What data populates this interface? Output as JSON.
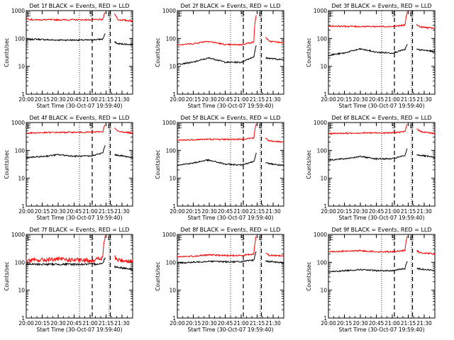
{
  "figure": {
    "xtitle_suffix": "Start Time (30-Oct-07 19:59:40)",
    "ylabel": "Counts/sec"
  },
  "chart_data": [
    {
      "type": "line",
      "title": "Det 1f BLACK = Events, RED = LLD",
      "xlabel": "Start Time (30-Oct-07 19:59:40)",
      "ylabel": "Counts/sec",
      "yscale": "log",
      "ylim": [
        1,
        1000
      ],
      "xticks": [
        "20:00",
        "20:15",
        "20:30",
        "20:45",
        "21:00",
        "21:15",
        "21:30"
      ],
      "yticks": [
        "1",
        "10",
        "100",
        "1000"
      ],
      "markers": [
        {
          "label": "E",
          "time": "20:00"
        },
        {
          "label": "S",
          "time": "21:02"
        },
        {
          "label": "E",
          "time": "21:19"
        }
      ],
      "series": [
        {
          "name": "Events",
          "color": "#000000",
          "anchors": [
            [
              0,
              88
            ],
            [
              0.08,
              95
            ],
            [
              0.25,
              88
            ],
            [
              0.6,
              88
            ],
            [
              0.72,
              95
            ],
            [
              0.742,
              150
            ]
          ],
          "post": [
            [
              0.83,
              75
            ],
            [
              0.86,
              65
            ],
            [
              1,
              60
            ]
          ]
        },
        {
          "name": "LLD",
          "color": "#ff0000",
          "anchors": [
            [
              0,
              520
            ],
            [
              0.06,
              470
            ],
            [
              0.25,
              470
            ],
            [
              0.6,
              470
            ],
            [
              0.72,
              480
            ],
            [
              0.742,
              900
            ]
          ],
          "post": [
            [
              0.83,
              780
            ],
            [
              0.86,
              470
            ],
            [
              1,
              430
            ]
          ]
        }
      ]
    },
    {
      "type": "line",
      "title": "Det 2f BLACK = Events, RED = LLD",
      "xlabel": "Start Time (30-Oct-07 19:59:40)",
      "ylabel": "Counts/sec",
      "yscale": "log",
      "ylim": [
        1,
        1000
      ],
      "xticks": [
        "20:00",
        "20:15",
        "20:30",
        "20:45",
        "21:00",
        "21:15",
        "21:30"
      ],
      "yticks": [
        "1",
        "10",
        "100",
        "1000"
      ],
      "markers": [
        {
          "label": "E",
          "time": "20:00"
        },
        {
          "label": "S",
          "time": "21:02"
        },
        {
          "label": "E",
          "time": "21:19"
        }
      ],
      "series": [
        {
          "name": "Events",
          "color": "#000000",
          "anchors": [
            [
              0,
              12
            ],
            [
              0.15,
              14
            ],
            [
              0.3,
              20
            ],
            [
              0.45,
              14
            ],
            [
              0.6,
              14
            ],
            [
              0.72,
              22
            ],
            [
              0.742,
              55
            ]
          ],
          "post": [
            [
              0.83,
              20
            ],
            [
              1,
              17
            ]
          ]
        },
        {
          "name": "LLD",
          "color": "#ff0000",
          "anchors": [
            [
              0,
              60
            ],
            [
              0.15,
              65
            ],
            [
              0.28,
              80
            ],
            [
              0.45,
              60
            ],
            [
              0.6,
              60
            ],
            [
              0.72,
              75
            ],
            [
              0.742,
              700
            ]
          ],
          "post": [
            [
              0.83,
              110
            ],
            [
              0.86,
              80
            ],
            [
              1,
              70
            ]
          ]
        }
      ]
    },
    {
      "type": "line",
      "title": "Det 3f BLACK = Events, RED = LLD",
      "xlabel": "Start Time (30-Oct-07 19:59:40)",
      "ylabel": "Counts/sec",
      "yscale": "log",
      "ylim": [
        1,
        1000
      ],
      "xticks": [
        "20:00",
        "20:15",
        "20:30",
        "20:45",
        "21:00",
        "21:15",
        "21:30"
      ],
      "yticks": [
        "1",
        "10",
        "100",
        "1000"
      ],
      "markers": [
        {
          "label": "E",
          "time": "20:00"
        },
        {
          "label": "S",
          "time": "21:02"
        },
        {
          "label": "E",
          "time": "21:19"
        }
      ],
      "series": [
        {
          "name": "Events",
          "color": "#000000",
          "anchors": [
            [
              0,
              25
            ],
            [
              0.15,
              30
            ],
            [
              0.3,
              42
            ],
            [
              0.45,
              32
            ],
            [
              0.6,
              30
            ],
            [
              0.72,
              40
            ],
            [
              0.742,
              60
            ]
          ],
          "post": [
            [
              0.83,
              40
            ],
            [
              1,
              34
            ]
          ]
        },
        {
          "name": "LLD",
          "color": "#ff0000",
          "anchors": [
            [
              0,
              280
            ],
            [
              0.25,
              270
            ],
            [
              0.6,
              270
            ],
            [
              0.72,
              300
            ],
            [
              0.742,
              900
            ]
          ],
          "post": [
            [
              0.83,
              320
            ],
            [
              0.86,
              260
            ],
            [
              1,
              230
            ]
          ]
        }
      ]
    },
    {
      "type": "line",
      "title": "Det 4f BLACK = Events, RED = LLD",
      "xlabel": "Start Time (30-Oct-07 19:59:40)",
      "ylabel": "Counts/sec",
      "yscale": "log",
      "ylim": [
        1,
        1000
      ],
      "xticks": [
        "20:00",
        "20:15",
        "20:30",
        "20:45",
        "21:00",
        "21:15",
        "21:30"
      ],
      "yticks": [
        "1",
        "10",
        "100",
        "1000"
      ],
      "markers": [
        {
          "label": "E",
          "time": "20:00"
        },
        {
          "label": "S",
          "time": "21:02"
        },
        {
          "label": "E",
          "time": "21:19"
        }
      ],
      "series": [
        {
          "name": "Events",
          "color": "#000000",
          "anchors": [
            [
              0,
              55
            ],
            [
              0.15,
              60
            ],
            [
              0.3,
              70
            ],
            [
              0.45,
              62
            ],
            [
              0.6,
              62
            ],
            [
              0.72,
              80
            ],
            [
              0.742,
              150
            ]
          ],
          "post": [
            [
              0.83,
              70
            ],
            [
              1,
              55
            ]
          ]
        },
        {
          "name": "LLD",
          "color": "#ff0000",
          "anchors": [
            [
              0,
              420
            ],
            [
              0.25,
              440
            ],
            [
              0.6,
              450
            ],
            [
              0.72,
              470
            ],
            [
              0.742,
              900
            ]
          ],
          "post": [
            [
              0.83,
              620
            ],
            [
              0.86,
              480
            ],
            [
              1,
              420
            ]
          ]
        }
      ]
    },
    {
      "type": "line",
      "title": "Det 5f BLACK = Events, RED = LLD",
      "xlabel": "Start Time (30-Oct-07 19:59:40)",
      "ylabel": "Counts/sec",
      "yscale": "log",
      "ylim": [
        1,
        1000
      ],
      "xticks": [
        "20:00",
        "20:15",
        "20:30",
        "20:45",
        "21:00",
        "21:15",
        "21:30"
      ],
      "yticks": [
        "1",
        "10",
        "100",
        "1000"
      ],
      "markers": [
        {
          "label": "E",
          "time": "20:00"
        },
        {
          "label": "S",
          "time": "21:02"
        },
        {
          "label": "E",
          "time": "21:19"
        }
      ],
      "series": [
        {
          "name": "Events",
          "color": "#000000",
          "anchors": [
            [
              0,
              30
            ],
            [
              0.15,
              35
            ],
            [
              0.28,
              45
            ],
            [
              0.45,
              32
            ],
            [
              0.6,
              30
            ],
            [
              0.72,
              40
            ],
            [
              0.742,
              80
            ]
          ],
          "post": [
            [
              0.83,
              35
            ],
            [
              1,
              28
            ]
          ]
        },
        {
          "name": "LLD",
          "color": "#ff0000",
          "anchors": [
            [
              0,
              230
            ],
            [
              0.25,
              250
            ],
            [
              0.6,
              250
            ],
            [
              0.72,
              280
            ],
            [
              0.742,
              900
            ]
          ],
          "post": [
            [
              0.83,
              280
            ],
            [
              0.86,
              220
            ],
            [
              1,
              200
            ]
          ]
        }
      ]
    },
    {
      "type": "line",
      "title": "Det 6f BLACK = Events, RED = LLD",
      "xlabel": "Start Time (30-Oct-07 19:59:40)",
      "ylabel": "Counts/sec",
      "yscale": "log",
      "ylim": [
        1,
        1000
      ],
      "xticks": [
        "20:00",
        "20:15",
        "20:30",
        "20:45",
        "21:00",
        "21:15",
        "21:30"
      ],
      "yticks": [
        "1",
        "10",
        "100",
        "1000"
      ],
      "markers": [
        {
          "label": "E",
          "time": "20:00"
        },
        {
          "label": "S",
          "time": "21:02"
        },
        {
          "label": "E",
          "time": "21:19"
        }
      ],
      "series": [
        {
          "name": "Events",
          "color": "#000000",
          "anchors": [
            [
              0,
              45
            ],
            [
              0.15,
              50
            ],
            [
              0.3,
              60
            ],
            [
              0.45,
              50
            ],
            [
              0.6,
              50
            ],
            [
              0.72,
              65
            ],
            [
              0.742,
              120
            ]
          ],
          "post": [
            [
              0.83,
              70
            ],
            [
              1,
              55
            ]
          ]
        },
        {
          "name": "LLD",
          "color": "#ff0000",
          "anchors": [
            [
              0,
              400
            ],
            [
              0.25,
              420
            ],
            [
              0.6,
              430
            ],
            [
              0.72,
              470
            ],
            [
              0.742,
              900
            ]
          ],
          "post": [
            [
              0.83,
              620
            ],
            [
              0.86,
              480
            ],
            [
              1,
              400
            ]
          ]
        }
      ]
    },
    {
      "type": "line",
      "title": "Det 7f BLACK = Events, RED = LLD",
      "xlabel": "Start Time (30-Oct-07 19:59:40)",
      "ylabel": "Counts/sec",
      "yscale": "log",
      "ylim": [
        1,
        1000
      ],
      "xticks": [
        "20:00",
        "20:15",
        "20:30",
        "20:45",
        "21:00",
        "21:15",
        "21:30"
      ],
      "yticks": [
        "1",
        "10",
        "100",
        "1000"
      ],
      "markers": [
        {
          "label": "E",
          "time": "20:00"
        },
        {
          "label": "S",
          "time": "21:02"
        },
        {
          "label": "E",
          "time": "21:19"
        }
      ],
      "series": [
        {
          "name": "Events",
          "color": "#000000",
          "anchors": [
            [
              0,
              85
            ],
            [
              0.15,
              85
            ],
            [
              0.3,
              85
            ],
            [
              0.45,
              85
            ],
            [
              0.6,
              85
            ],
            [
              0.72,
              90
            ],
            [
              0.742,
              150
            ]
          ],
          "post": [
            [
              0.83,
              70
            ],
            [
              1,
              55
            ]
          ]
        },
        {
          "name": "LLD",
          "color": "#ff0000",
          "anchors": [
            [
              0,
              115
            ],
            [
              0.15,
              120
            ],
            [
              0.3,
              130
            ],
            [
              0.45,
              120
            ],
            [
              0.6,
              115
            ],
            [
              0.72,
              140
            ],
            [
              0.742,
              900
            ]
          ],
          "post": [
            [
              0.83,
              150
            ],
            [
              0.86,
              120
            ],
            [
              1,
              110
            ]
          ]
        }
      ]
    },
    {
      "type": "line",
      "title": "Det 8f BLACK = Events, RED = LLD",
      "xlabel": "Start Time (30-Oct-07 19:59:40)",
      "ylabel": "Counts/sec",
      "yscale": "log",
      "ylim": [
        1,
        1000
      ],
      "xticks": [
        "20:00",
        "20:15",
        "20:30",
        "20:45",
        "21:00",
        "21:15",
        "21:30"
      ],
      "yticks": [
        "1",
        "10",
        "100",
        "1000"
      ],
      "markers": [
        {
          "label": "E",
          "time": "20:00"
        },
        {
          "label": "S",
          "time": "21:02"
        },
        {
          "label": "E",
          "time": "21:19"
        }
      ],
      "series": [
        {
          "name": "Events",
          "color": "#000000",
          "anchors": [
            [
              0,
              95
            ],
            [
              0.15,
              100
            ],
            [
              0.3,
              110
            ],
            [
              0.45,
              105
            ],
            [
              0.6,
              105
            ],
            [
              0.72,
              120
            ],
            [
              0.742,
              250
            ]
          ],
          "post": [
            [
              0.83,
              110
            ],
            [
              1,
              95
            ]
          ]
        },
        {
          "name": "LLD",
          "color": "#ff0000",
          "anchors": [
            [
              0,
              160
            ],
            [
              0.15,
              165
            ],
            [
              0.3,
              185
            ],
            [
              0.45,
              175
            ],
            [
              0.6,
              175
            ],
            [
              0.72,
              200
            ],
            [
              0.742,
              900
            ]
          ],
          "post": [
            [
              0.83,
              220
            ],
            [
              0.86,
              180
            ],
            [
              1,
              170
            ]
          ]
        }
      ]
    },
    {
      "type": "line",
      "title": "Det 9f BLACK = Events, RED = LLD",
      "xlabel": "Start Time (30-Oct-07 19:59:40)",
      "ylabel": "Counts/sec",
      "yscale": "log",
      "ylim": [
        1,
        1000
      ],
      "xticks": [
        "20:00",
        "20:15",
        "20:30",
        "20:45",
        "21:00",
        "21:15",
        "21:30"
      ],
      "yticks": [
        "1",
        "10",
        "100",
        "1000"
      ],
      "markers": [
        {
          "label": "E",
          "time": "20:00"
        },
        {
          "label": "S",
          "time": "21:02"
        },
        {
          "label": "E",
          "time": "21:19"
        }
      ],
      "series": [
        {
          "name": "Events",
          "color": "#000000",
          "anchors": [
            [
              0,
              45
            ],
            [
              0.15,
              50
            ],
            [
              0.3,
              55
            ],
            [
              0.45,
              50
            ],
            [
              0.6,
              50
            ],
            [
              0.72,
              60
            ],
            [
              0.742,
              110
            ]
          ],
          "post": [
            [
              0.83,
              60
            ],
            [
              1,
              50
            ]
          ]
        },
        {
          "name": "LLD",
          "color": "#ff0000",
          "anchors": [
            [
              0,
              240
            ],
            [
              0.15,
              250
            ],
            [
              0.3,
              260
            ],
            [
              0.45,
              240
            ],
            [
              0.6,
              240
            ],
            [
              0.72,
              270
            ],
            [
              0.742,
              900
            ]
          ],
          "post": [
            [
              0.83,
              260
            ],
            [
              0.86,
              220
            ],
            [
              1,
              200
            ]
          ]
        }
      ]
    }
  ]
}
